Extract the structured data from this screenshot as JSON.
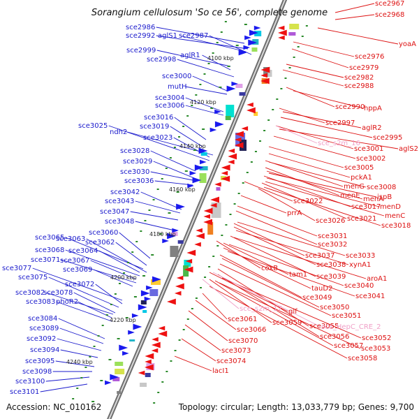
{
  "title": "Sorangium cellulosum 'So ce 56', complete genome",
  "accession": "Accession: NC_010162",
  "topology": "Topology: circular; Length: 13,033,779 bp; Genes: 9,700",
  "colors": {
    "left_labels": "#1a1acc",
    "right_labels": "#dd1111",
    "rna_labels": "#f0a0c8",
    "backbone": "#777777",
    "tick": "#2a8a2a",
    "forward_gene": "#1a1aee",
    "reverse_gene": "#ee1111"
  },
  "kbp_ticks": [
    "4100 kbp",
    "4120 kbp",
    "4140 kbp",
    "4160 kbp",
    "4180 kbp",
    "4200 kbp",
    "4220 kbp",
    "4240 kbp"
  ],
  "left_genes": [
    "sce2986",
    "sce2992",
    "aglS1",
    "sce2987",
    "sce2999",
    "sce2998",
    "aglR1",
    "sce3000",
    "mutH",
    "sce3004",
    "sce3006",
    "sce3016",
    "sce3019",
    "sce3025",
    "ndh2",
    "sce3023",
    "sce3028",
    "sce3029",
    "sce3030",
    "sce3036",
    "sce3042",
    "sce3043",
    "sce3047",
    "sce3048",
    "sce3060",
    "sce3065",
    "sce3063",
    "sce3062",
    "sce3068",
    "sce3064",
    "sce3071",
    "sce3067",
    "sce3077",
    "sce3069",
    "sce3075",
    "sce3072",
    "sce3082",
    "sce3078",
    "sce3083",
    "phoR2",
    "sce3084",
    "sce3089",
    "sce3092",
    "sce3094",
    "sce3095",
    "sce3098",
    "sce3100",
    "sce3101"
  ],
  "right_genes": [
    "sce2967",
    "sce2968",
    "yoaA",
    "sce2976",
    "sce2979",
    "sce2982",
    "sce2988",
    "sce2990",
    "hppA",
    "sce2997",
    "aglR2",
    "sce2995",
    "sce3001",
    "aglS2",
    "sce3002",
    "sce3005",
    "pckA1",
    "menG",
    "sce3008",
    "menE",
    "menA",
    "ispB",
    "sce3022",
    "sce3017",
    "menD",
    "prrA",
    "sce3026",
    "sce3021",
    "menC",
    "sce3018",
    "sce3031",
    "sce3032",
    "sce3037",
    "sce3033",
    "coxB",
    "sce3038",
    "xynA1",
    "tam1",
    "sce3039",
    "aroA1",
    "sce3040",
    "tauD2",
    "sce3041",
    "sce3049",
    "sce3050",
    "glf",
    "sce3051",
    "sce3061",
    "sce3059",
    "sce3055",
    "sce3066",
    "sce3056",
    "sce3052",
    "sce3070",
    "sce3057",
    "sce3053",
    "sce3073",
    "sce3058",
    "sce3074",
    "lacI1"
  ],
  "rna_genes": [
    "sce_s2m_16",
    "sce_s2m_17",
    "sce_HepC_CRE_2"
  ]
}
